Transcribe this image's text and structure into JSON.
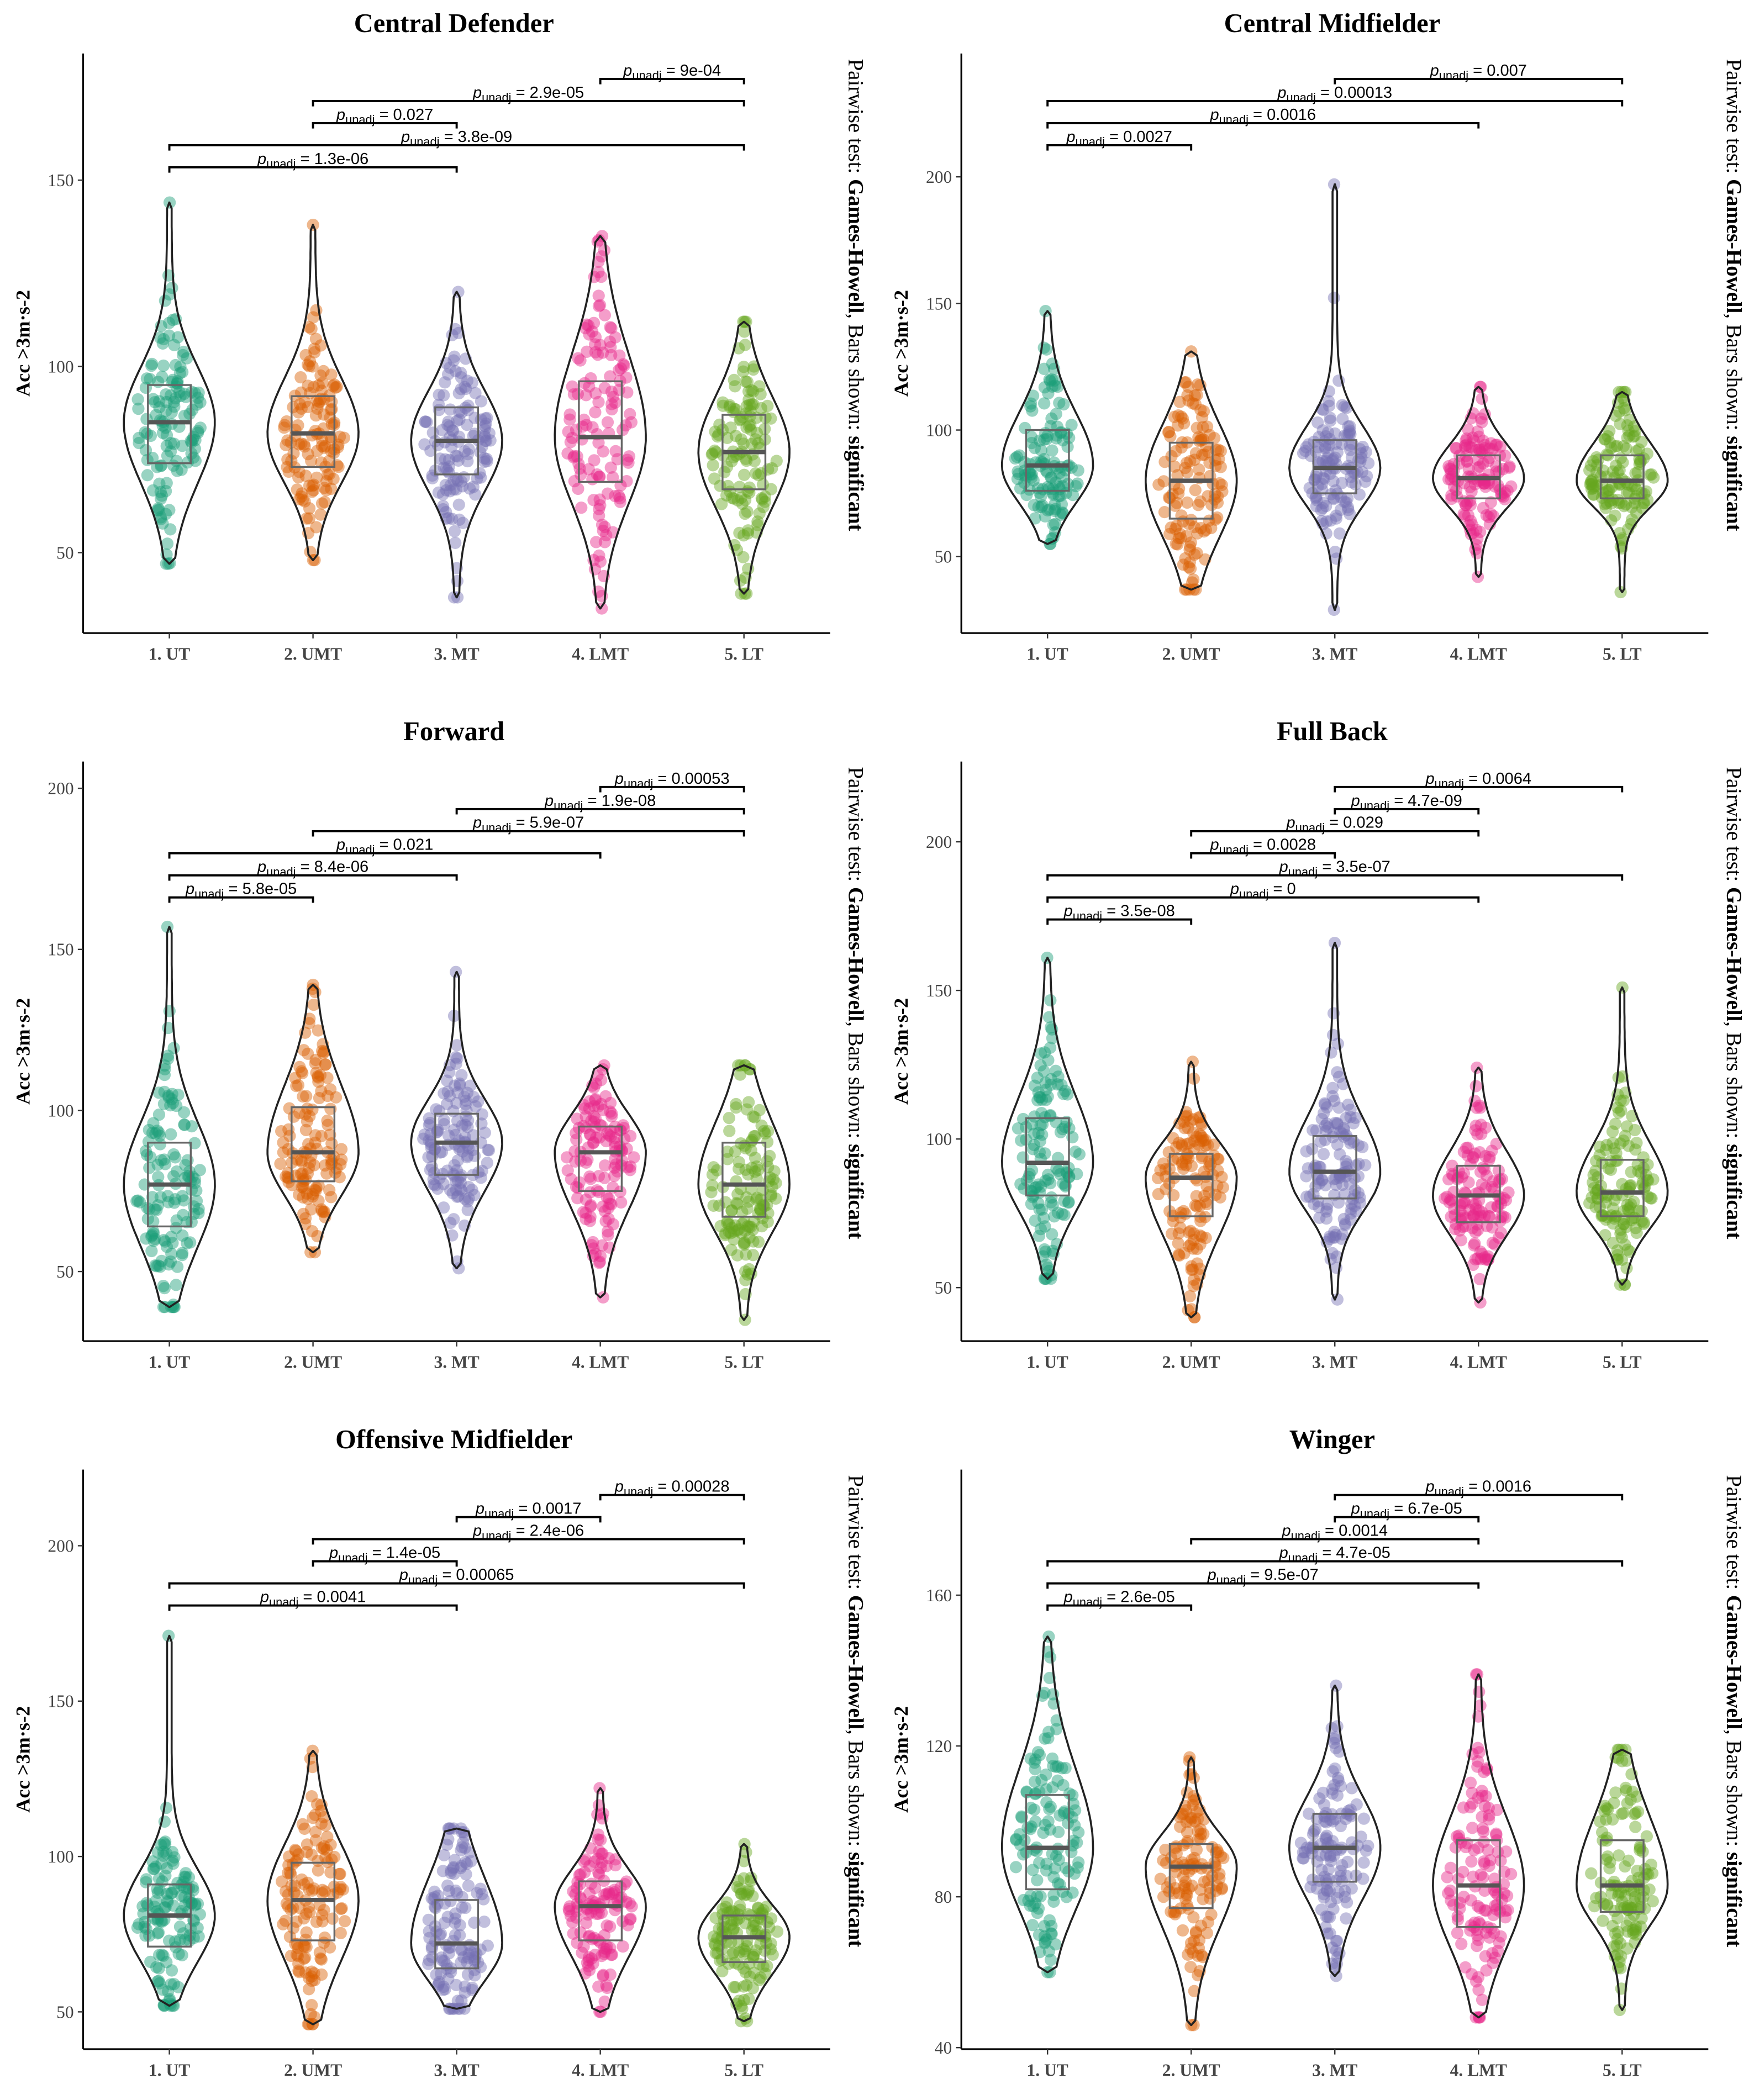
{
  "annotation": {
    "prefix": "Pairwise test: ",
    "test": "Games-Howell",
    "middle": ", Bars shown: ",
    "shown": "significant"
  },
  "p_label": {
    "symbol": "p",
    "subscript": "unadj",
    "equals": " = "
  },
  "colors": [
    "#1b9e77",
    "#d95f02",
    "#7570b3",
    "#e7298a",
    "#66a61e"
  ],
  "chart_data": [
    {
      "type": "violin-box",
      "title": "Central Defender",
      "ylabel": "Acc >3m·s-2",
      "categories": [
        "1. UT",
        "2. UMT",
        "3. MT",
        "4. LMT",
        "5. LT"
      ],
      "yticks": [
        50,
        100,
        150
      ],
      "ylim": [
        28.4,
        184
      ],
      "groups": [
        {
          "median": 85,
          "q1": 74,
          "q3": 95,
          "min": 47,
          "max": 144
        },
        {
          "median": 82,
          "q1": 73,
          "q3": 92,
          "min": 48,
          "max": 138
        },
        {
          "median": 80,
          "q1": 71,
          "q3": 89,
          "min": 38,
          "max": 120
        },
        {
          "median": 81,
          "q1": 69,
          "q3": 96,
          "min": 35,
          "max": 135
        },
        {
          "median": 77,
          "q1": 67,
          "q3": 87,
          "min": 39,
          "max": 112
        }
      ],
      "brackets": [
        {
          "pair": [
            0,
            2
          ],
          "p": "1.3e-06"
        },
        {
          "pair": [
            0,
            4
          ],
          "p": "3.8e-09"
        },
        {
          "pair": [
            1,
            2
          ],
          "p": "0.027"
        },
        {
          "pair": [
            1,
            4
          ],
          "p": "2.9e-05"
        },
        {
          "pair": [
            3,
            4
          ],
          "p": "9e-04"
        }
      ]
    },
    {
      "type": "violin-box",
      "title": "Central Midfielder",
      "ylabel": "Acc >3m·s-2",
      "categories": [
        "1. UT",
        "2. UMT",
        "3. MT",
        "4. LMT",
        "5. LT"
      ],
      "yticks": [
        50,
        100,
        150,
        200
      ],
      "ylim": [
        19.8,
        248.7
      ],
      "groups": [
        {
          "median": 86,
          "q1": 76,
          "q3": 100,
          "min": 55,
          "max": 147
        },
        {
          "median": 80,
          "q1": 65,
          "q3": 95,
          "min": 37,
          "max": 131
        },
        {
          "median": 85,
          "q1": 75,
          "q3": 96,
          "min": 29,
          "max": 197
        },
        {
          "median": 81,
          "q1": 73,
          "q3": 90,
          "min": 42,
          "max": 117
        },
        {
          "median": 80,
          "q1": 73,
          "q3": 90,
          "min": 36,
          "max": 115
        }
      ],
      "brackets": [
        {
          "pair": [
            0,
            1
          ],
          "p": "0.0027"
        },
        {
          "pair": [
            0,
            3
          ],
          "p": "0.0016"
        },
        {
          "pair": [
            0,
            4
          ],
          "p": "0.00013"
        },
        {
          "pair": [
            2,
            4
          ],
          "p": "0.007"
        }
      ]
    },
    {
      "type": "violin-box",
      "title": "Forward",
      "ylabel": "Acc >3m·s-2",
      "categories": [
        "1. UT",
        "2. UMT",
        "3. MT",
        "4. LMT",
        "5. LT"
      ],
      "yticks": [
        50,
        100,
        150,
        200
      ],
      "ylim": [
        28.4,
        208.3
      ],
      "groups": [
        {
          "median": 77,
          "q1": 64,
          "q3": 90,
          "min": 39,
          "max": 157
        },
        {
          "median": 87,
          "q1": 78,
          "q3": 101,
          "min": 56,
          "max": 139
        },
        {
          "median": 90,
          "q1": 80,
          "q3": 99,
          "min": 51,
          "max": 143
        },
        {
          "median": 87,
          "q1": 75,
          "q3": 95,
          "min": 42,
          "max": 114
        },
        {
          "median": 77,
          "q1": 67,
          "q3": 90,
          "min": 35,
          "max": 114
        }
      ],
      "brackets": [
        {
          "pair": [
            0,
            1
          ],
          "p": "5.8e-05"
        },
        {
          "pair": [
            0,
            2
          ],
          "p": "8.4e-06"
        },
        {
          "pair": [
            0,
            3
          ],
          "p": "0.021"
        },
        {
          "pair": [
            1,
            4
          ],
          "p": "5.9e-07"
        },
        {
          "pair": [
            2,
            4
          ],
          "p": "1.9e-08"
        },
        {
          "pair": [
            3,
            4
          ],
          "p": "0.00053"
        }
      ]
    },
    {
      "type": "violin-box",
      "title": "Full Back",
      "ylabel": "Acc >3m·s-2",
      "categories": [
        "1. UT",
        "2. UMT",
        "3. MT",
        "4. LMT",
        "5. LT"
      ],
      "yticks": [
        50,
        100,
        150,
        200
      ],
      "ylim": [
        32,
        227
      ],
      "groups": [
        {
          "median": 92,
          "q1": 81,
          "q3": 107,
          "min": 53,
          "max": 161
        },
        {
          "median": 87,
          "q1": 74,
          "q3": 95,
          "min": 40,
          "max": 126
        },
        {
          "median": 89,
          "q1": 80,
          "q3": 101,
          "min": 46,
          "max": 166
        },
        {
          "median": 81,
          "q1": 72,
          "q3": 91,
          "min": 45,
          "max": 124
        },
        {
          "median": 82,
          "q1": 74,
          "q3": 93,
          "min": 51,
          "max": 151
        }
      ],
      "brackets": [
        {
          "pair": [
            0,
            1
          ],
          "p": "3.5e-08"
        },
        {
          "pair": [
            0,
            3
          ],
          "p": "0"
        },
        {
          "pair": [
            0,
            4
          ],
          "p": "3.5e-07"
        },
        {
          "pair": [
            1,
            2
          ],
          "p": "0.0028"
        },
        {
          "pair": [
            1,
            3
          ],
          "p": "0.029"
        },
        {
          "pair": [
            2,
            3
          ],
          "p": "4.7e-09"
        },
        {
          "pair": [
            2,
            4
          ],
          "p": "0.0064"
        }
      ]
    },
    {
      "type": "violin-box",
      "title": "Offensive Midfielder",
      "ylabel": "Acc >3m·s-2",
      "categories": [
        "1. UT",
        "2. UMT",
        "3. MT",
        "4. LMT",
        "5. LT"
      ],
      "yticks": [
        50,
        100,
        150,
        200
      ],
      "ylim": [
        38,
        224.5
      ],
      "groups": [
        {
          "median": 81,
          "q1": 71,
          "q3": 91,
          "min": 52,
          "max": 171
        },
        {
          "median": 86,
          "q1": 73,
          "q3": 98,
          "min": 46,
          "max": 134
        },
        {
          "median": 72,
          "q1": 64,
          "q3": 86,
          "min": 51,
          "max": 109
        },
        {
          "median": 84,
          "q1": 73,
          "q3": 92,
          "min": 50,
          "max": 122
        },
        {
          "median": 74,
          "q1": 66,
          "q3": 81,
          "min": 47,
          "max": 104
        }
      ],
      "brackets": [
        {
          "pair": [
            0,
            2
          ],
          "p": "0.0041"
        },
        {
          "pair": [
            0,
            4
          ],
          "p": "0.00065"
        },
        {
          "pair": [
            1,
            2
          ],
          "p": "1.4e-05"
        },
        {
          "pair": [
            1,
            4
          ],
          "p": "2.4e-06"
        },
        {
          "pair": [
            2,
            3
          ],
          "p": "0.0017"
        },
        {
          "pair": [
            3,
            4
          ],
          "p": "0.00028"
        }
      ]
    },
    {
      "type": "violin-box",
      "title": "Winger",
      "ylabel": "Acc >3m·s-2",
      "categories": [
        "1. UT",
        "2. UMT",
        "3. MT",
        "4. LMT",
        "5. LT"
      ],
      "yticks": [
        40,
        80,
        120,
        160
      ],
      "ylim": [
        39.6,
        193.3
      ],
      "groups": [
        {
          "median": 93,
          "q1": 82,
          "q3": 107,
          "min": 60,
          "max": 149
        },
        {
          "median": 88,
          "q1": 77,
          "q3": 94,
          "min": 46,
          "max": 117
        },
        {
          "median": 93,
          "q1": 84,
          "q3": 102,
          "min": 59,
          "max": 136
        },
        {
          "median": 83,
          "q1": 72,
          "q3": 95,
          "min": 48,
          "max": 139
        },
        {
          "median": 83,
          "q1": 76,
          "q3": 95,
          "min": 50,
          "max": 119
        }
      ],
      "brackets": [
        {
          "pair": [
            0,
            1
          ],
          "p": "2.6e-05"
        },
        {
          "pair": [
            0,
            3
          ],
          "p": "9.5e-07"
        },
        {
          "pair": [
            0,
            4
          ],
          "p": "4.7e-05"
        },
        {
          "pair": [
            1,
            3
          ],
          "p": "0.0014"
        },
        {
          "pair": [
            2,
            3
          ],
          "p": "6.7e-05"
        },
        {
          "pair": [
            2,
            4
          ],
          "p": "0.0016"
        }
      ]
    }
  ]
}
